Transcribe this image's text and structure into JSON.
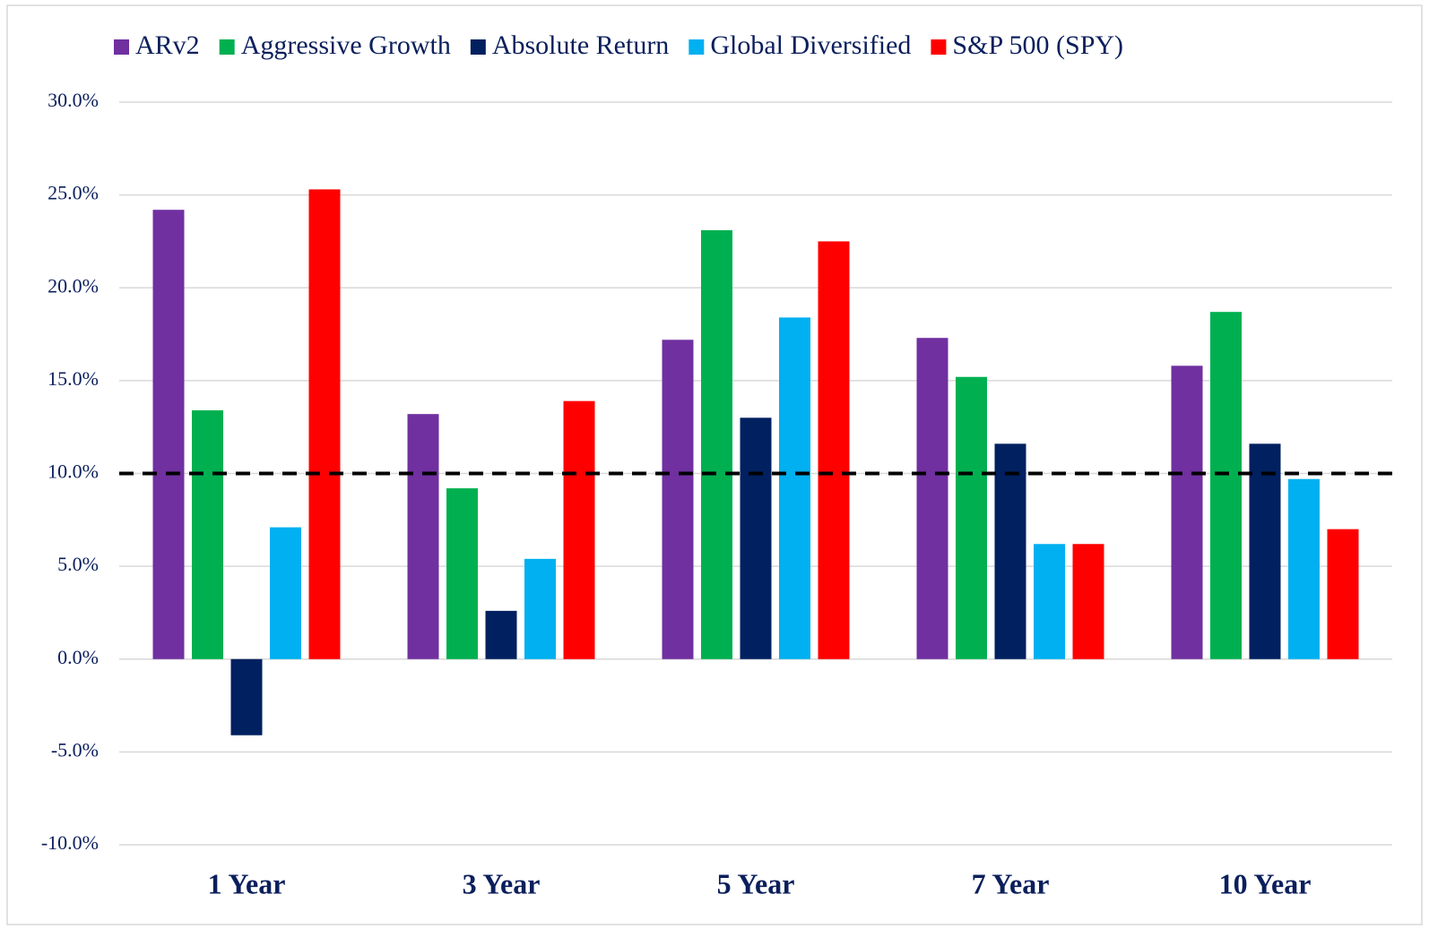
{
  "chart_data": {
    "type": "bar",
    "categories": [
      "1 Year",
      "3 Year",
      "5 Year",
      "7 Year",
      "10 Year"
    ],
    "series": [
      {
        "name": "ARv2",
        "color": "#7030a0",
        "values": [
          24.2,
          13.2,
          17.2,
          17.3,
          15.8
        ]
      },
      {
        "name": "Aggressive Growth",
        "color": "#00b050",
        "values": [
          13.4,
          9.2,
          23.1,
          15.2,
          18.7
        ]
      },
      {
        "name": "Absolute Return",
        "color": "#002060",
        "values": [
          -4.1,
          2.6,
          13.0,
          11.6,
          11.6
        ]
      },
      {
        "name": "Global Diversified",
        "color": "#00b0f0",
        "values": [
          7.1,
          5.4,
          18.4,
          6.2,
          9.7
        ]
      },
      {
        "name": "S&P 500 (SPY)",
        "color": "#ff0000",
        "values": [
          25.3,
          13.9,
          22.5,
          6.2,
          7.0
        ]
      }
    ],
    "ylim": [
      -10,
      30
    ],
    "yticks": [
      {
        "value": -10,
        "label": "-10.0%"
      },
      {
        "value": -5,
        "label": "-5.0%"
      },
      {
        "value": 0,
        "label": "0.0%"
      },
      {
        "value": 5,
        "label": "5.0%"
      },
      {
        "value": 10,
        "label": "10.0%"
      },
      {
        "value": 15,
        "label": "15.0%"
      },
      {
        "value": 20,
        "label": "20.0%"
      },
      {
        "value": 25,
        "label": "25.0%"
      },
      {
        "value": 30,
        "label": "30.0%"
      }
    ],
    "reference_line": 10,
    "grid": true,
    "legend": "top"
  }
}
